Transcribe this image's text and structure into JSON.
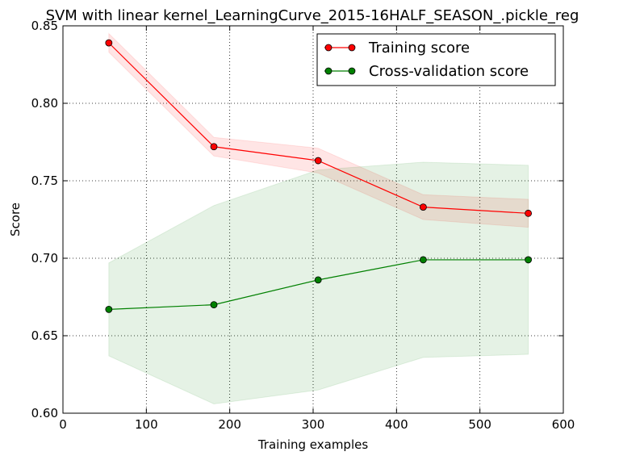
{
  "chart_data": {
    "type": "line",
    "title": "SVM with linear kernel_LearningCurve_2015-16HALF_SEASON_.pickle_reg",
    "xlabel": "Training examples",
    "ylabel": "Score",
    "xlim": [
      0,
      600
    ],
    "ylim": [
      0.6,
      0.85
    ],
    "xticks": [
      "0",
      "100",
      "200",
      "300",
      "400",
      "500",
      "600"
    ],
    "yticks": [
      "0.60",
      "0.65",
      "0.70",
      "0.75",
      "0.80",
      "0.85"
    ],
    "grid": true,
    "legend_position": "top-right",
    "x": [
      55,
      181,
      306,
      432,
      558
    ],
    "series": [
      {
        "name": "Training score",
        "color": "#ff0000",
        "values": [
          0.839,
          0.772,
          0.763,
          0.733,
          0.729
        ],
        "band_upper": [
          0.845,
          0.778,
          0.771,
          0.741,
          0.738
        ],
        "band_lower": [
          0.833,
          0.766,
          0.755,
          0.725,
          0.72
        ]
      },
      {
        "name": "Cross-validation score",
        "color": "#008000",
        "values": [
          0.667,
          0.67,
          0.686,
          0.699,
          0.699
        ],
        "band_upper": [
          0.697,
          0.734,
          0.757,
          0.762,
          0.76
        ],
        "band_lower": [
          0.637,
          0.606,
          0.615,
          0.636,
          0.638
        ]
      }
    ]
  }
}
